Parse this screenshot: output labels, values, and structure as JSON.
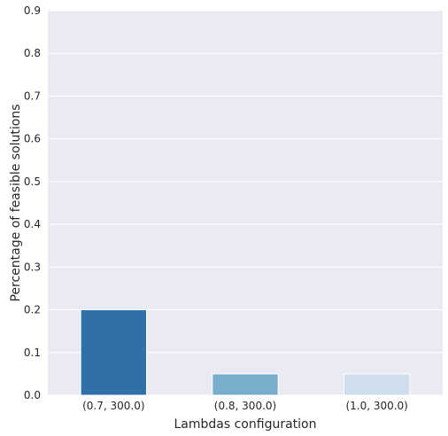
{
  "chart_data": {
    "type": "bar",
    "categories": [
      "(0.7, 300.0)",
      "(0.8, 300.0)",
      "(1.0, 300.0)"
    ],
    "values": [
      0.2,
      0.05,
      0.05
    ],
    "xlabel": "Lambdas configuration",
    "ylabel": "Percentage of feasible solutions",
    "ylim": [
      0,
      0.9
    ],
    "yticks": [
      "0.0",
      "0.1",
      "0.2",
      "0.3",
      "0.4",
      "0.5",
      "0.6",
      "0.7",
      "0.8",
      "0.9"
    ],
    "bar_colors": [
      "#3070a8",
      "#78aecc",
      "#cfdeec"
    ],
    "background": "#eaeaf2",
    "grid": true,
    "grid_color": "#ffffff"
  }
}
